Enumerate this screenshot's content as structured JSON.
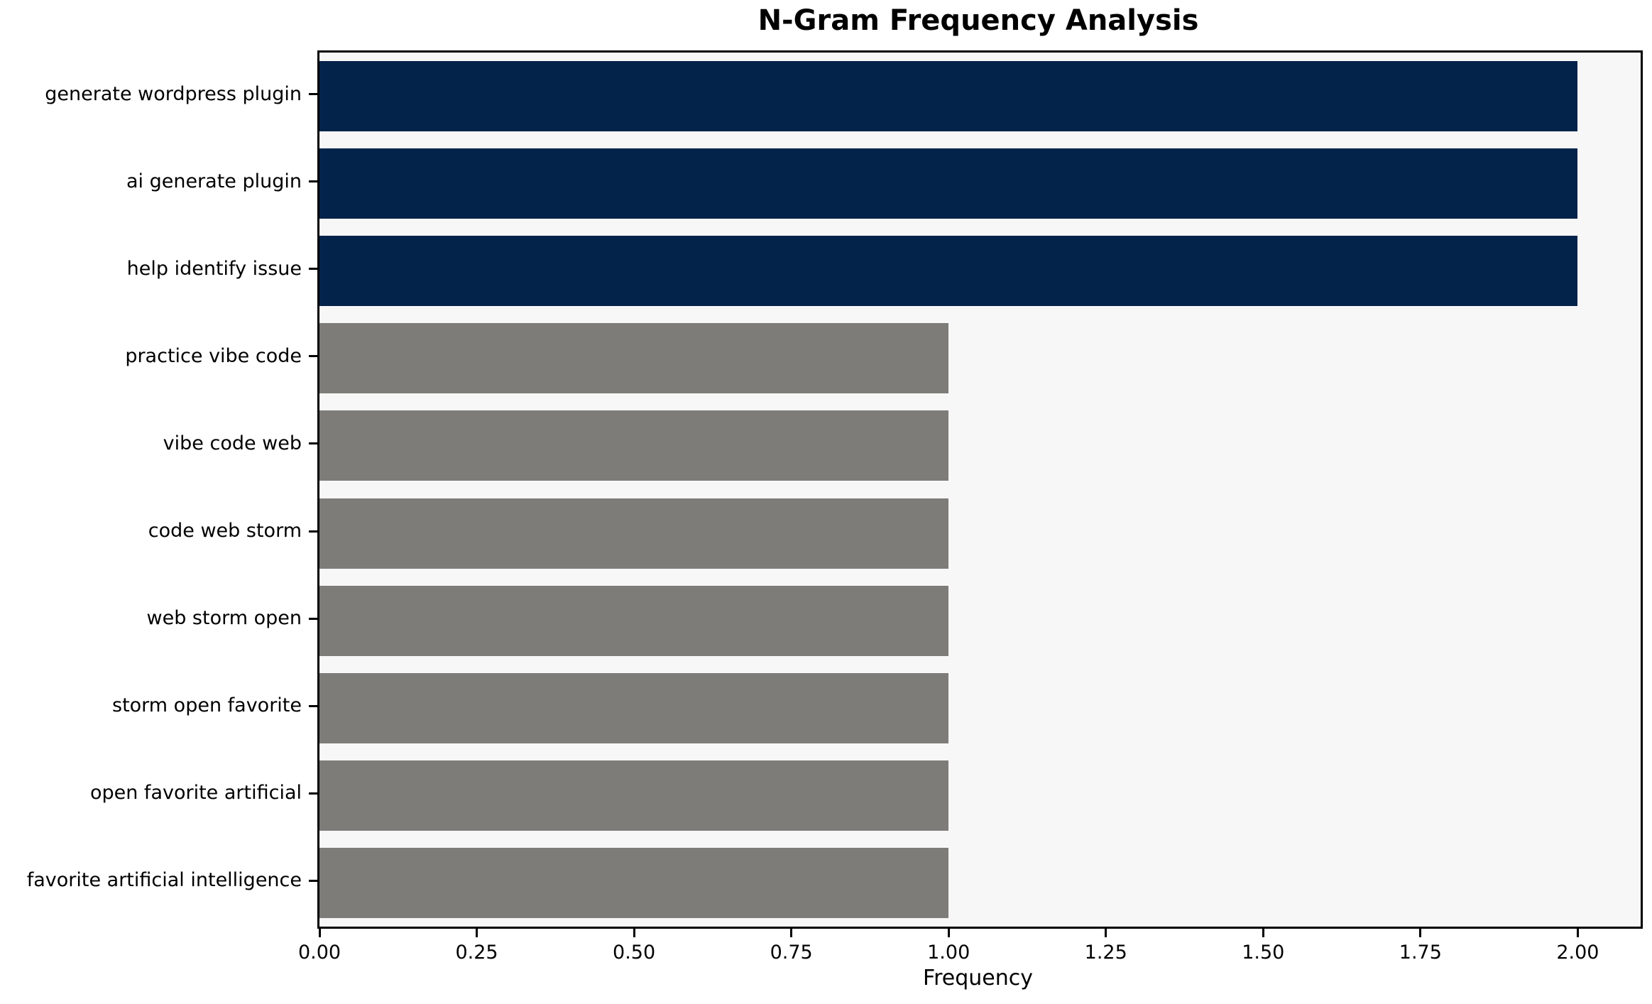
{
  "chart_data": {
    "type": "bar",
    "orientation": "horizontal",
    "title": "N-Gram Frequency Analysis",
    "xlabel": "Frequency",
    "ylabel": "",
    "categories": [
      "generate wordpress plugin",
      "ai generate plugin",
      "help identify issue",
      "practice vibe code",
      "vibe code web",
      "code web storm",
      "web storm open",
      "storm open favorite",
      "open favorite artificial",
      "favorite artificial intelligence"
    ],
    "values": [
      2,
      2,
      2,
      1,
      1,
      1,
      1,
      1,
      1,
      1
    ],
    "colors": [
      "#04234a",
      "#04234a",
      "#04234a",
      "#7d7c79",
      "#7d7c79",
      "#7d7c79",
      "#7d7c79",
      "#7d7c79",
      "#7d7c79",
      "#7d7c79"
    ],
    "xlim": [
      0,
      2.1
    ],
    "x_ticks": [
      0.0,
      0.25,
      0.5,
      0.75,
      1.0,
      1.25,
      1.5,
      1.75,
      2.0
    ],
    "x_tick_labels": [
      "0.00",
      "0.25",
      "0.50",
      "0.75",
      "1.00",
      "1.25",
      "1.50",
      "1.75",
      "2.00"
    ],
    "grid": false,
    "legend": false,
    "plot_background": "#f7f7f7",
    "figure_background": "#ffffff",
    "accent_color": "#04234a",
    "muted_color": "#7d7c79"
  }
}
